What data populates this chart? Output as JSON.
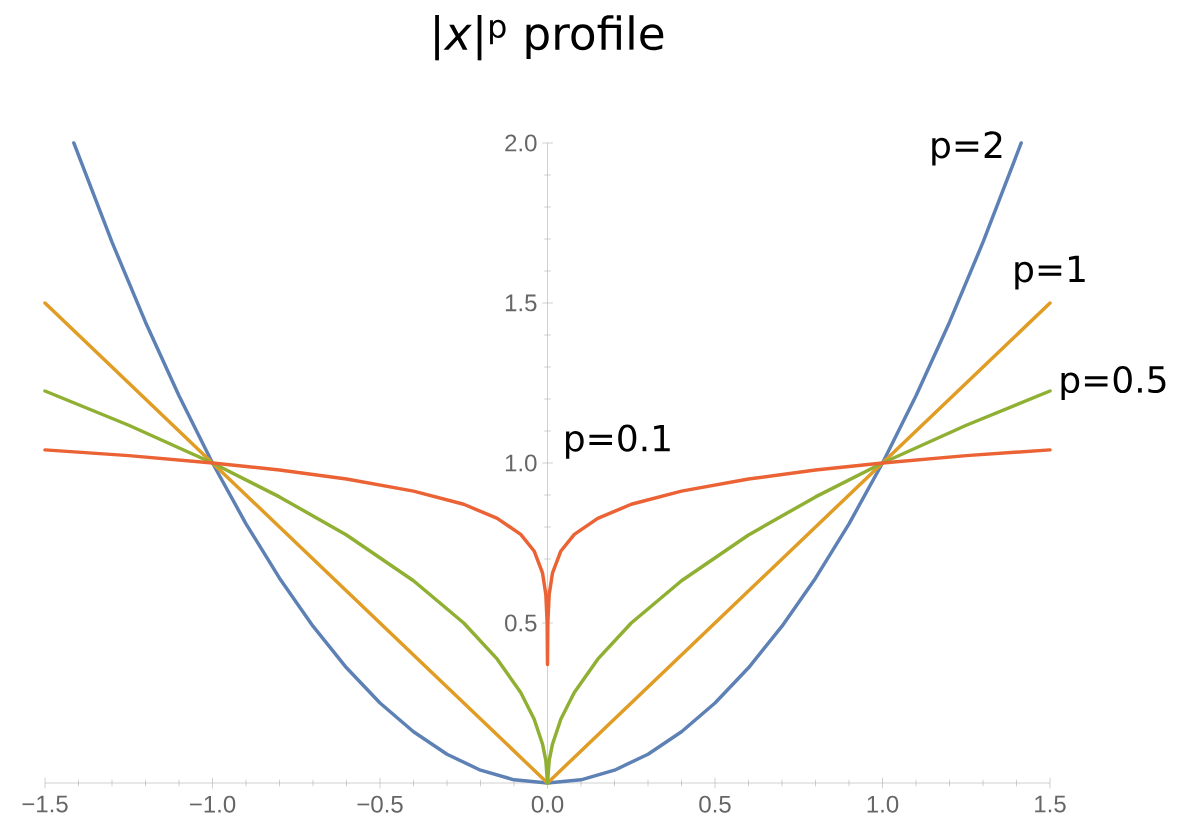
{
  "chart_data": {
    "type": "line",
    "title": "|*x*|$^{p}$ profile",
    "xlim": [
      -1.5,
      1.5
    ],
    "ylim": [
      0,
      2.0
    ],
    "xticks": [
      {
        "value": -1.5,
        "label": "−1.5"
      },
      {
        "value": -1.0,
        "label": "−1.0"
      },
      {
        "value": -0.5,
        "label": "−0.5"
      },
      {
        "value": 0,
        "label": "0.0"
      },
      {
        "value": 0.5,
        "label": "0.5"
      },
      {
        "value": 1.0,
        "label": "1.0"
      },
      {
        "value": 1.5,
        "label": "1.5"
      }
    ],
    "yticks": [
      {
        "value": 0.5,
        "label": "0.5"
      },
      {
        "value": 1.0,
        "label": "1.0"
      },
      {
        "value": 1.5,
        "label": "1.5"
      },
      {
        "value": 2.0,
        "label": "2.0"
      }
    ],
    "grid": false,
    "legend": false,
    "series": [
      {
        "name": "p=2",
        "color": "#5e81b5",
        "x": [
          -1.414,
          -1.3,
          -1.2,
          -1.1,
          -1.0,
          -0.9,
          -0.8,
          -0.7,
          -0.6,
          -0.5,
          -0.4,
          -0.3,
          -0.2,
          -0.1,
          0,
          0.1,
          0.2,
          0.3,
          0.4,
          0.5,
          0.6,
          0.7,
          0.8,
          0.9,
          1.0,
          1.1,
          1.2,
          1.3,
          1.414
        ],
        "values": [
          2.0,
          1.69,
          1.44,
          1.21,
          1.0,
          0.81,
          0.64,
          0.49,
          0.36,
          0.25,
          0.16,
          0.09,
          0.04,
          0.01,
          0,
          0.01,
          0.04,
          0.09,
          0.16,
          0.25,
          0.36,
          0.49,
          0.64,
          0.81,
          1.0,
          1.21,
          1.44,
          1.69,
          2.0
        ]
      },
      {
        "name": "p=1",
        "color": "#e19c24",
        "x": [
          -1.5,
          0,
          1.5
        ],
        "values": [
          1.5,
          0,
          1.5
        ]
      },
      {
        "name": "p=0.5",
        "color": "#8fb032",
        "x": [
          -1.5,
          -1.25,
          -1.0,
          -0.8,
          -0.6,
          -0.4,
          -0.25,
          -0.15,
          -0.08,
          -0.04,
          -0.015,
          -0.005,
          0,
          0.005,
          0.015,
          0.04,
          0.08,
          0.15,
          0.25,
          0.4,
          0.6,
          0.8,
          1.0,
          1.25,
          1.5
        ],
        "values": [
          1.225,
          1.118,
          1.0,
          0.894,
          0.775,
          0.632,
          0.5,
          0.387,
          0.283,
          0.2,
          0.122,
          0.071,
          0,
          0.071,
          0.122,
          0.2,
          0.283,
          0.387,
          0.5,
          0.632,
          0.775,
          0.894,
          1.0,
          1.118,
          1.225
        ]
      },
      {
        "name": "p=0.1",
        "color": "#eb6235",
        "x": [
          -1.5,
          -1.25,
          -1.0,
          -0.8,
          -0.6,
          -0.4,
          -0.25,
          -0.15,
          -0.08,
          -0.04,
          -0.015,
          -0.005,
          -0.001,
          0,
          0.001,
          0.005,
          0.015,
          0.04,
          0.08,
          0.15,
          0.25,
          0.4,
          0.6,
          0.8,
          1.0,
          1.25,
          1.5
        ],
        "values": [
          1.041,
          1.023,
          1.0,
          0.978,
          0.95,
          0.912,
          0.871,
          0.827,
          0.777,
          0.725,
          0.657,
          0.589,
          0.501,
          0.37,
          0.501,
          0.589,
          0.657,
          0.725,
          0.777,
          0.827,
          0.871,
          0.912,
          0.95,
          0.978,
          1.0,
          1.023,
          1.041
        ]
      }
    ]
  }
}
